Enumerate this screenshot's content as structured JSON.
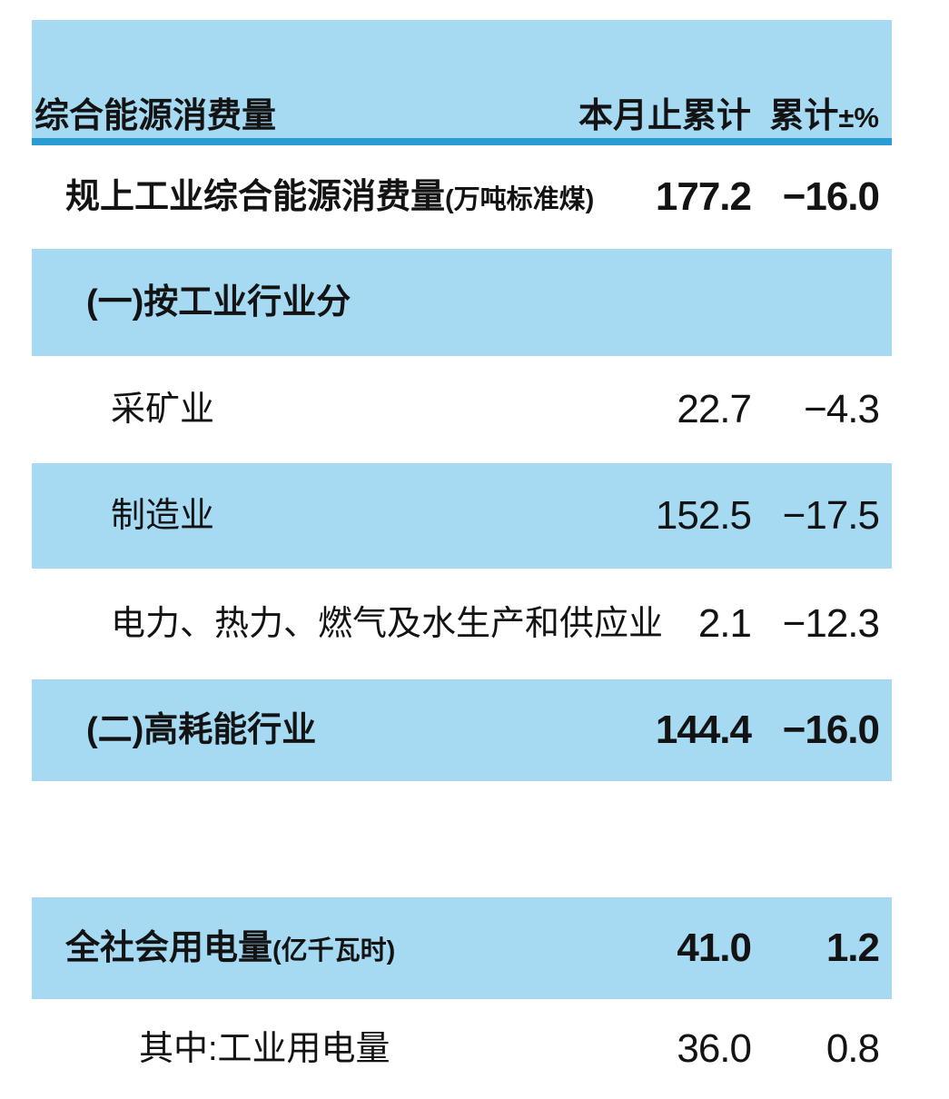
{
  "colors": {
    "band": "#a5daf2",
    "rule": "#2b9bd4",
    "ink": "#131313"
  },
  "table": {
    "header": {
      "label": "综合能源消费量",
      "col1": "本月止累计",
      "col2": "累计",
      "col2_suffix": "±%"
    },
    "rows": [
      {
        "label": "规上工业综合能源消费量",
        "label_suffix": "(万吨标准煤)",
        "col1": "177.2",
        "col2": "−16.0",
        "style": "white",
        "emphasis": "bold",
        "indent": 1
      },
      {
        "label": "(一)按工业行业分",
        "label_suffix": "",
        "col1": "",
        "col2": "",
        "style": "blue",
        "emphasis": "bold",
        "indent": 2
      },
      {
        "label": "采矿业",
        "label_suffix": "",
        "col1": "22.7",
        "col2": "−4.3",
        "style": "white",
        "emphasis": "normal",
        "indent": 3
      },
      {
        "label": "制造业",
        "label_suffix": "",
        "col1": "152.5",
        "col2": "−17.5",
        "style": "blue",
        "emphasis": "normal",
        "indent": 3
      },
      {
        "label": "电力、热力、燃气及水生产和供应业",
        "label_suffix": "",
        "col1": "2.1",
        "col2": "−12.3",
        "style": "white",
        "emphasis": "normal",
        "indent": 3
      },
      {
        "label": "(二)高耗能行业",
        "label_suffix": "",
        "col1": "144.4",
        "col2": "−16.0",
        "style": "blue",
        "emphasis": "bold",
        "indent": 2
      },
      {
        "label": "",
        "label_suffix": "",
        "col1": "",
        "col2": "",
        "style": "spacer",
        "emphasis": "normal",
        "indent": 0
      },
      {
        "label": "全社会用电量",
        "label_suffix": "(亿千瓦时)",
        "col1": "41.0",
        "col2": "1.2",
        "style": "blue",
        "emphasis": "bold",
        "indent": 1
      },
      {
        "label": "其中:工业用电量",
        "label_suffix": "",
        "col1": "36.0",
        "col2": "0.8",
        "style": "white",
        "emphasis": "normal",
        "indent": 4
      }
    ]
  }
}
